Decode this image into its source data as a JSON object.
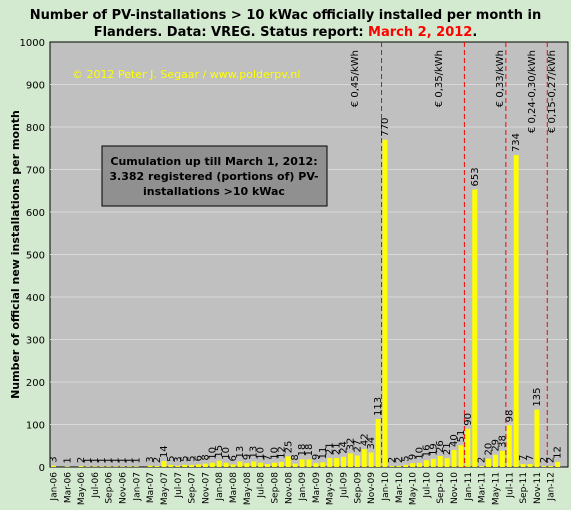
{
  "chart_data": {
    "type": "bar",
    "title_line1": "Number of PV-installations > 10 kWac officially installed per month in",
    "title_line2_prefix": "Flanders. Data: VREG. Status report: ",
    "title_line2_date": "March 2, 2012",
    "title_line2_suffix": ".",
    "copyright": "© 2012 Peter J. Segaar / www.polderpv.nl",
    "ylabel": "Number of official new installations per month",
    "xlabel": "",
    "ylim": [
      0,
      1000
    ],
    "yticks": [
      "0",
      "100",
      "200",
      "300",
      "400",
      "500",
      "600",
      "700",
      "800",
      "900",
      "1000"
    ],
    "xtick_labels": [
      "Jan-06",
      "Mar-06",
      "May-06",
      "Jul-06",
      "Sep-06",
      "Nov-06",
      "Jan-07",
      "Mar-07",
      "May-07",
      "Jul-07",
      "Sep-07",
      "Nov-07",
      "Jan-08",
      "Mar-08",
      "May-08",
      "Jul-08",
      "Sep-08",
      "Nov-08",
      "Jan-09",
      "Mar-09",
      "May-09",
      "Jul-09",
      "Sep-09",
      "Nov-09",
      "Jan-10",
      "Mar-10",
      "May-10",
      "Jul-10",
      "Sep-10",
      "Nov-10",
      "Jan-11",
      "Mar-11",
      "May-11",
      "Jul-11",
      "Sep-11",
      "Nov-11",
      "Jan-12"
    ],
    "values": [
      3,
      0,
      1,
      0,
      2,
      1,
      1,
      1,
      1,
      1,
      1,
      1,
      1,
      0,
      3,
      2,
      14,
      5,
      3,
      5,
      5,
      6,
      8,
      10,
      15,
      10,
      6,
      13,
      9,
      13,
      10,
      7,
      10,
      12,
      25,
      8,
      18,
      18,
      9,
      11,
      21,
      21,
      24,
      32,
      27,
      42,
      34,
      113,
      770,
      2,
      2,
      5,
      9,
      10,
      16,
      19,
      26,
      21,
      40,
      51,
      90,
      653,
      2,
      20,
      29,
      38,
      98,
      734,
      7,
      7,
      135,
      2,
      2,
      12,
      0
    ],
    "value_labels": [
      "3",
      "",
      "1",
      "",
      "2",
      "1",
      "1",
      "1",
      "1",
      "1",
      "1",
      "1",
      "1",
      "",
      "3",
      "2",
      "14",
      "5",
      "3",
      "5",
      "5",
      "6",
      "8",
      "10",
      "15",
      "10",
      "6",
      "13",
      "9",
      "13",
      "10",
      "7",
      "10",
      "12",
      "25",
      "8",
      "18",
      "18",
      "9",
      "11",
      "21",
      "21",
      "24",
      "32",
      "27",
      "42",
      "34",
      "113",
      "770",
      "2",
      "2",
      "5",
      "9",
      "10",
      "16",
      "19",
      "26",
      "21",
      "40",
      "51",
      "90",
      "653",
      "2",
      "20",
      "29",
      "38",
      "98",
      "734",
      "7",
      "7",
      "135",
      "2",
      "2",
      "12",
      ""
    ],
    "annotation_box": {
      "line1": "Cumulation up till March 1, 2012:",
      "line2": "3.382 registered (portions of) PV-",
      "line3": "installations >10 kWac"
    },
    "tariff_labels": [
      "€ 0,45/kWh",
      "€ 0,35/kWh",
      "€ 0,33/kWh",
      "€ 0,24-0,30/kWh",
      "€ 0,15-0,27/kWh"
    ],
    "colors": {
      "bar": "#ffff00",
      "plot_bg": "#c0c0c0",
      "page_bg": "#d4ead0",
      "grid": "#d8d8d8",
      "divider": "#ff0000",
      "copyright": "#ffff00",
      "box_bg": "#909090"
    }
  }
}
